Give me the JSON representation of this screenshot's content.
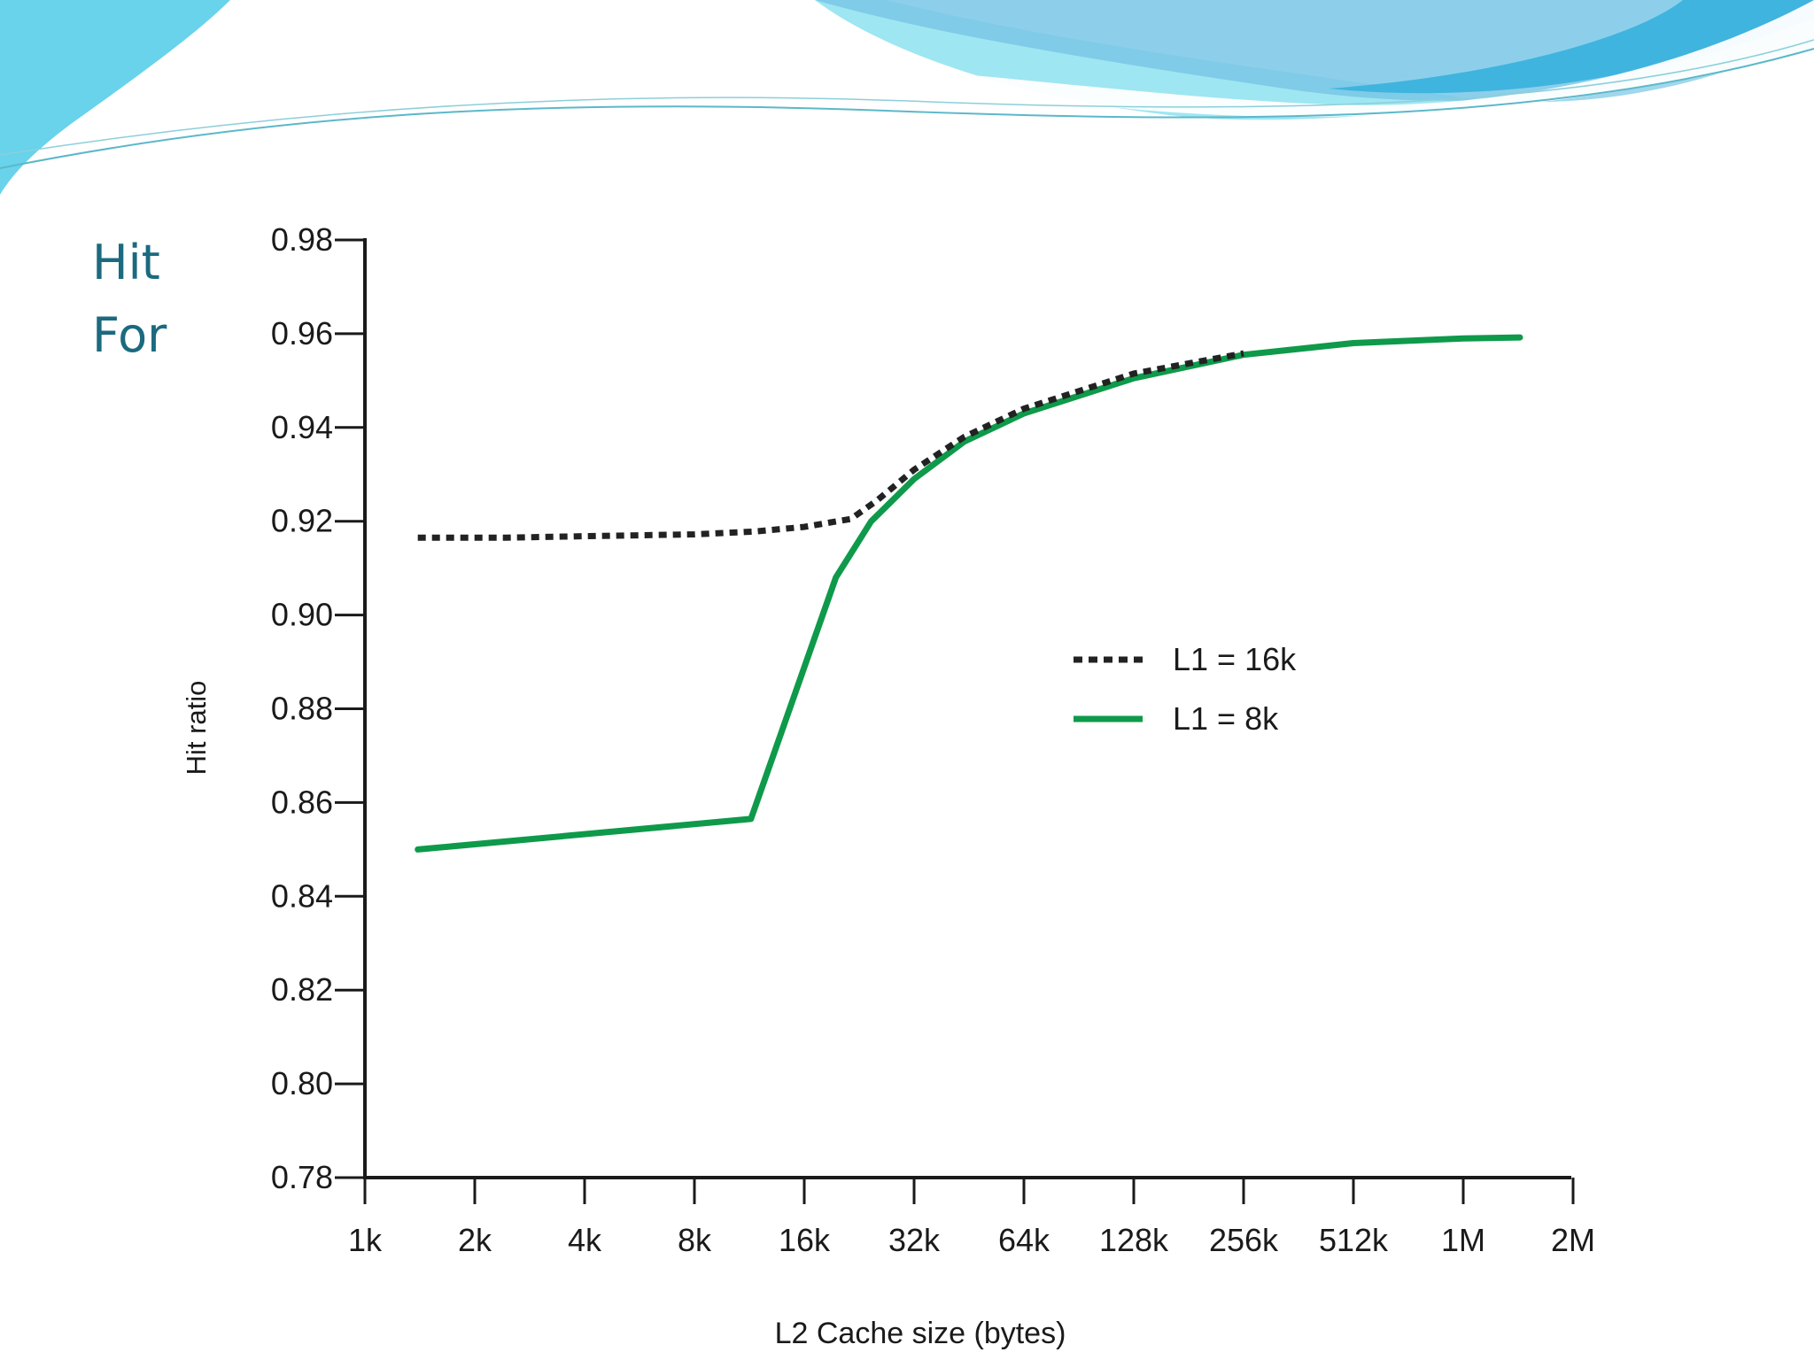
{
  "slide": {
    "text_lines": [
      "Hit",
      "For"
    ],
    "colors": {
      "title_text": "#1b6a7f",
      "wave_light": "#9ee6f2",
      "wave_mid": "#68d3ea",
      "wave_dark": "#3fb4de",
      "background": "#ffffff"
    }
  },
  "chart_data": {
    "type": "line",
    "title": "",
    "xlabel": "L2 Cache size (bytes)",
    "ylabel": "Hit ratio",
    "x_scale": "log2",
    "categories": [
      "1k",
      "2k",
      "4k",
      "8k",
      "16k",
      "32k",
      "64k",
      "128k",
      "256k",
      "512k",
      "1M",
      "2M"
    ],
    "x_tick_values_bytes": [
      1024,
      2048,
      4096,
      8192,
      16384,
      32768,
      65536,
      131072,
      262144,
      524288,
      1048576,
      2097152
    ],
    "ylim": [
      0.78,
      0.98
    ],
    "y_ticks": [
      "0.78",
      "0.80",
      "0.82",
      "0.84",
      "0.86",
      "0.88",
      "0.90",
      "0.92",
      "0.94",
      "0.96",
      "0.98"
    ],
    "grid": false,
    "legend_position": "center-right",
    "series": [
      {
        "name": "L1 = 16k",
        "style": "dotted",
        "color": "#222222",
        "points": [
          {
            "x_bytes": 1430,
            "y": 0.9165
          },
          {
            "x_bytes": 2500,
            "y": 0.9165
          },
          {
            "x_bytes": 4096,
            "y": 0.9168
          },
          {
            "x_bytes": 8192,
            "y": 0.9172
          },
          {
            "x_bytes": 12000,
            "y": 0.9178
          },
          {
            "x_bytes": 16384,
            "y": 0.9188
          },
          {
            "x_bytes": 22000,
            "y": 0.9205
          },
          {
            "x_bytes": 26000,
            "y": 0.9245
          },
          {
            "x_bytes": 32768,
            "y": 0.931
          },
          {
            "x_bytes": 45000,
            "y": 0.938
          },
          {
            "x_bytes": 65536,
            "y": 0.944
          },
          {
            "x_bytes": 131072,
            "y": 0.9515
          },
          {
            "x_bytes": 262144,
            "y": 0.9558
          }
        ]
      },
      {
        "name": "L1 = 8k",
        "style": "solid",
        "color": "#0e9a4a",
        "points": [
          {
            "x_bytes": 1430,
            "y": 0.85
          },
          {
            "x_bytes": 11700,
            "y": 0.8565
          },
          {
            "x_bytes": 20000,
            "y": 0.908
          },
          {
            "x_bytes": 25000,
            "y": 0.92
          },
          {
            "x_bytes": 32768,
            "y": 0.929
          },
          {
            "x_bytes": 45000,
            "y": 0.937
          },
          {
            "x_bytes": 65536,
            "y": 0.943
          },
          {
            "x_bytes": 131072,
            "y": 0.9505
          },
          {
            "x_bytes": 262144,
            "y": 0.9555
          },
          {
            "x_bytes": 524288,
            "y": 0.958
          },
          {
            "x_bytes": 1048576,
            "y": 0.959
          },
          {
            "x_bytes": 1500000,
            "y": 0.9592
          }
        ]
      }
    ]
  }
}
